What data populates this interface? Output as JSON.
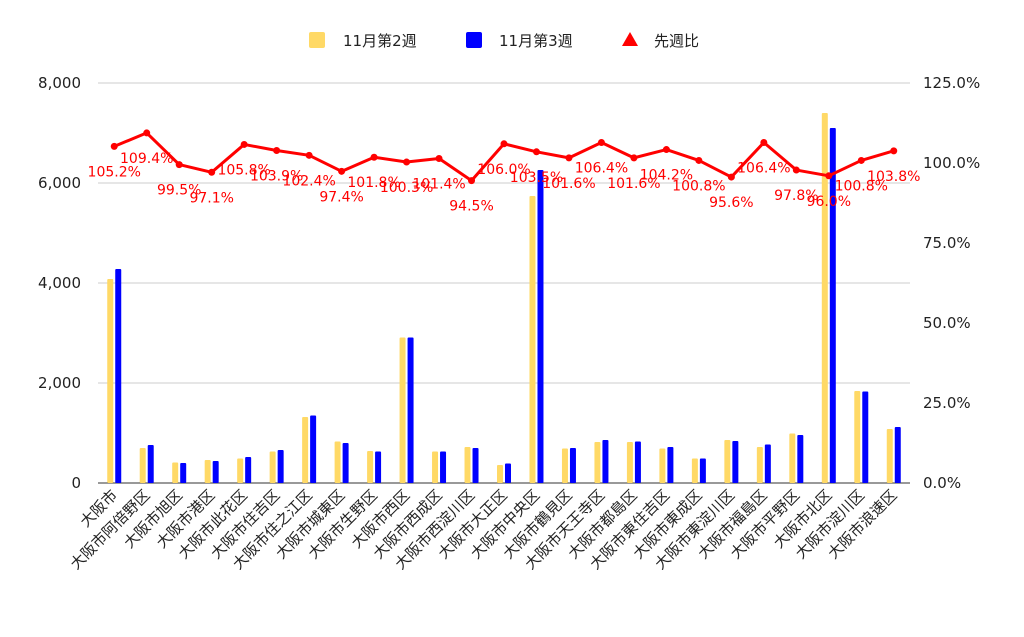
{
  "chart_data": {
    "type": "bar",
    "categories": [
      "大阪市",
      "大阪市阿倍野区",
      "大阪市旭区",
      "大阪市港区",
      "大阪市此花区",
      "大阪市住吉区",
      "大阪市住之江区",
      "大阪市城東区",
      "大阪市生野区",
      "大阪市西区",
      "大阪市西成区",
      "大阪市西淀川区",
      "大阪市大正区",
      "大阪市中央区",
      "大阪市鶴見区",
      "大阪市天王寺区",
      "大阪市都島区",
      "大阪市東住吉区",
      "大阪市東成区",
      "大阪市東淀川区",
      "大阪市福島区",
      "大阪市平野区",
      "大阪市北区",
      "大阪市淀川区",
      "大阪市浪速区"
    ],
    "series": [
      {
        "name": "11月第2週",
        "type": "bar",
        "axis": "left",
        "color": "#ffd966",
        "values": [
          4080,
          700,
          410,
          460,
          490,
          630,
          1320,
          830,
          640,
          2910,
          630,
          720,
          360,
          5740,
          690,
          820,
          820,
          690,
          490,
          860,
          720,
          990,
          7400,
          1840,
          1080
        ]
      },
      {
        "name": "11月第3週",
        "type": "bar",
        "axis": "left",
        "color": "#0000ff",
        "values": [
          4280,
          760,
          400,
          440,
          520,
          660,
          1350,
          800,
          630,
          2910,
          630,
          700,
          390,
          6260,
          700,
          860,
          830,
          720,
          490,
          840,
          770,
          960,
          7100,
          1830,
          1120
        ]
      },
      {
        "name": "先週比",
        "type": "line",
        "axis": "right",
        "color": "#ff0000",
        "values": [
          105.2,
          109.4,
          99.5,
          97.1,
          105.8,
          103.9,
          102.4,
          97.4,
          101.8,
          100.3,
          101.4,
          94.5,
          106.0,
          103.5,
          101.6,
          106.4,
          101.6,
          104.2,
          100.8,
          95.6,
          106.4,
          97.8,
          96.0,
          100.8,
          103.8
        ],
        "labels": [
          "105.2%",
          "109.4%",
          "99.5%",
          "97.1%",
          "105.8%",
          "103.9%",
          "102.4%",
          "97.4%",
          "101.8%",
          "100.3%",
          "101.4%",
          "94.5%",
          "106.0%",
          "103.5%",
          "101.6%",
          "106.4%",
          "101.6%",
          "104.2%",
          "100.8%",
          "95.6%",
          "106.4%",
          "97.8%",
          "96.0%",
          "100.8%",
          "103.8%"
        ]
      }
    ],
    "y_left": {
      "min": 0,
      "max": 8000,
      "ticks": [
        "0",
        "2,000",
        "4,000",
        "6,000",
        "8,000"
      ]
    },
    "y_right": {
      "min": 0,
      "max": 125,
      "ticks": [
        "0.0%",
        "25.0%",
        "50.0%",
        "75.0%",
        "100.0%",
        "125.0%"
      ]
    },
    "legend": {
      "position": "top",
      "items": [
        "11月第2週",
        "11月第3週",
        "先週比"
      ]
    },
    "grid": true,
    "title": "",
    "xlabel": "",
    "ylabel": ""
  }
}
